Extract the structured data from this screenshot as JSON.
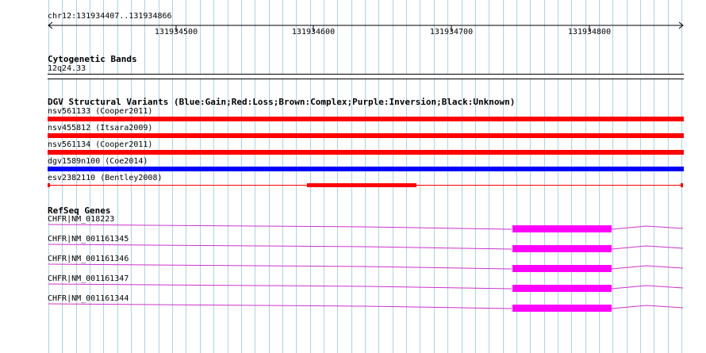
{
  "ruler": {
    "region": "chr12:131934407..131934866",
    "ticks": [
      "131934500",
      "131934600",
      "131934700",
      "131934800"
    ]
  },
  "cytobands": {
    "title": "Cytogenetic Bands",
    "band": "12q24.33"
  },
  "dgv": {
    "title": "DGV Structural Variants (Blue:Gain;Red:Loss;Brown:Complex;Purple:Inversion;Black:Unknown)",
    "variants": [
      {
        "label": "nsv561133 (Cooper2011)",
        "type": "Loss"
      },
      {
        "label": "nsv455812 (Itsara2009)",
        "type": "Loss"
      },
      {
        "label": "nsv561134 (Cooper2011)",
        "type": "Loss"
      },
      {
        "label": "dgv1589n100 (Coe2014)",
        "type": "Gain"
      },
      {
        "label": "esv2382110 (Bentley2008)",
        "type": "Loss"
      }
    ]
  },
  "refseq": {
    "title": "RefSeq Genes",
    "genes": [
      {
        "label": "CHFR|NM_018223"
      },
      {
        "label": "CHFR|NM_001161345"
      },
      {
        "label": "CHFR|NM_001161346"
      },
      {
        "label": "CHFR|NM_001161347"
      },
      {
        "label": "CHFR|NM_001161344"
      }
    ]
  },
  "colors": {
    "grid": "#a8d4e8",
    "loss": "#ff0000",
    "gain": "#0000ff",
    "gene": "#ff00ff",
    "intron": "#cc33cc"
  }
}
